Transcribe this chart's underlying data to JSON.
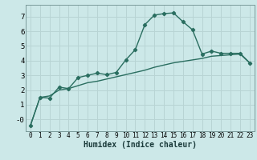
{
  "xlabel": "Humidex (Indice chaleur)",
  "bg_color": "#cce8e8",
  "grid_color": "#b8d4d4",
  "line_color": "#2a6e60",
  "xlim": [
    -0.5,
    23.5
  ],
  "ylim": [
    -0.8,
    7.8
  ],
  "xticks": [
    0,
    1,
    2,
    3,
    4,
    5,
    6,
    7,
    8,
    9,
    10,
    11,
    12,
    13,
    14,
    15,
    16,
    17,
    18,
    19,
    20,
    21,
    22,
    23
  ],
  "yticks": [
    0,
    1,
    2,
    3,
    4,
    5,
    6,
    7
  ],
  "series1_x": [
    0,
    1,
    2,
    3,
    4,
    5,
    6,
    7,
    8,
    9,
    10,
    11,
    12,
    13,
    14,
    15,
    16,
    17,
    18,
    19,
    20,
    21,
    22,
    23
  ],
  "series1_y": [
    -0.4,
    1.5,
    1.45,
    2.2,
    2.1,
    2.85,
    3.0,
    3.15,
    3.05,
    3.2,
    4.05,
    4.75,
    6.45,
    7.1,
    7.2,
    7.25,
    6.65,
    6.1,
    4.45,
    4.65,
    4.5,
    4.5,
    4.5,
    3.85
  ],
  "series2_x": [
    0,
    1,
    2,
    3,
    4,
    5,
    6,
    7,
    8,
    9,
    10,
    11,
    12,
    13,
    14,
    15,
    16,
    17,
    18,
    19,
    20,
    21,
    22,
    23
  ],
  "series2_y": [
    -0.4,
    1.5,
    1.6,
    2.0,
    2.1,
    2.3,
    2.5,
    2.6,
    2.75,
    2.9,
    3.05,
    3.2,
    3.35,
    3.55,
    3.7,
    3.85,
    3.95,
    4.05,
    4.15,
    4.3,
    4.35,
    4.4,
    4.45,
    3.85
  ]
}
